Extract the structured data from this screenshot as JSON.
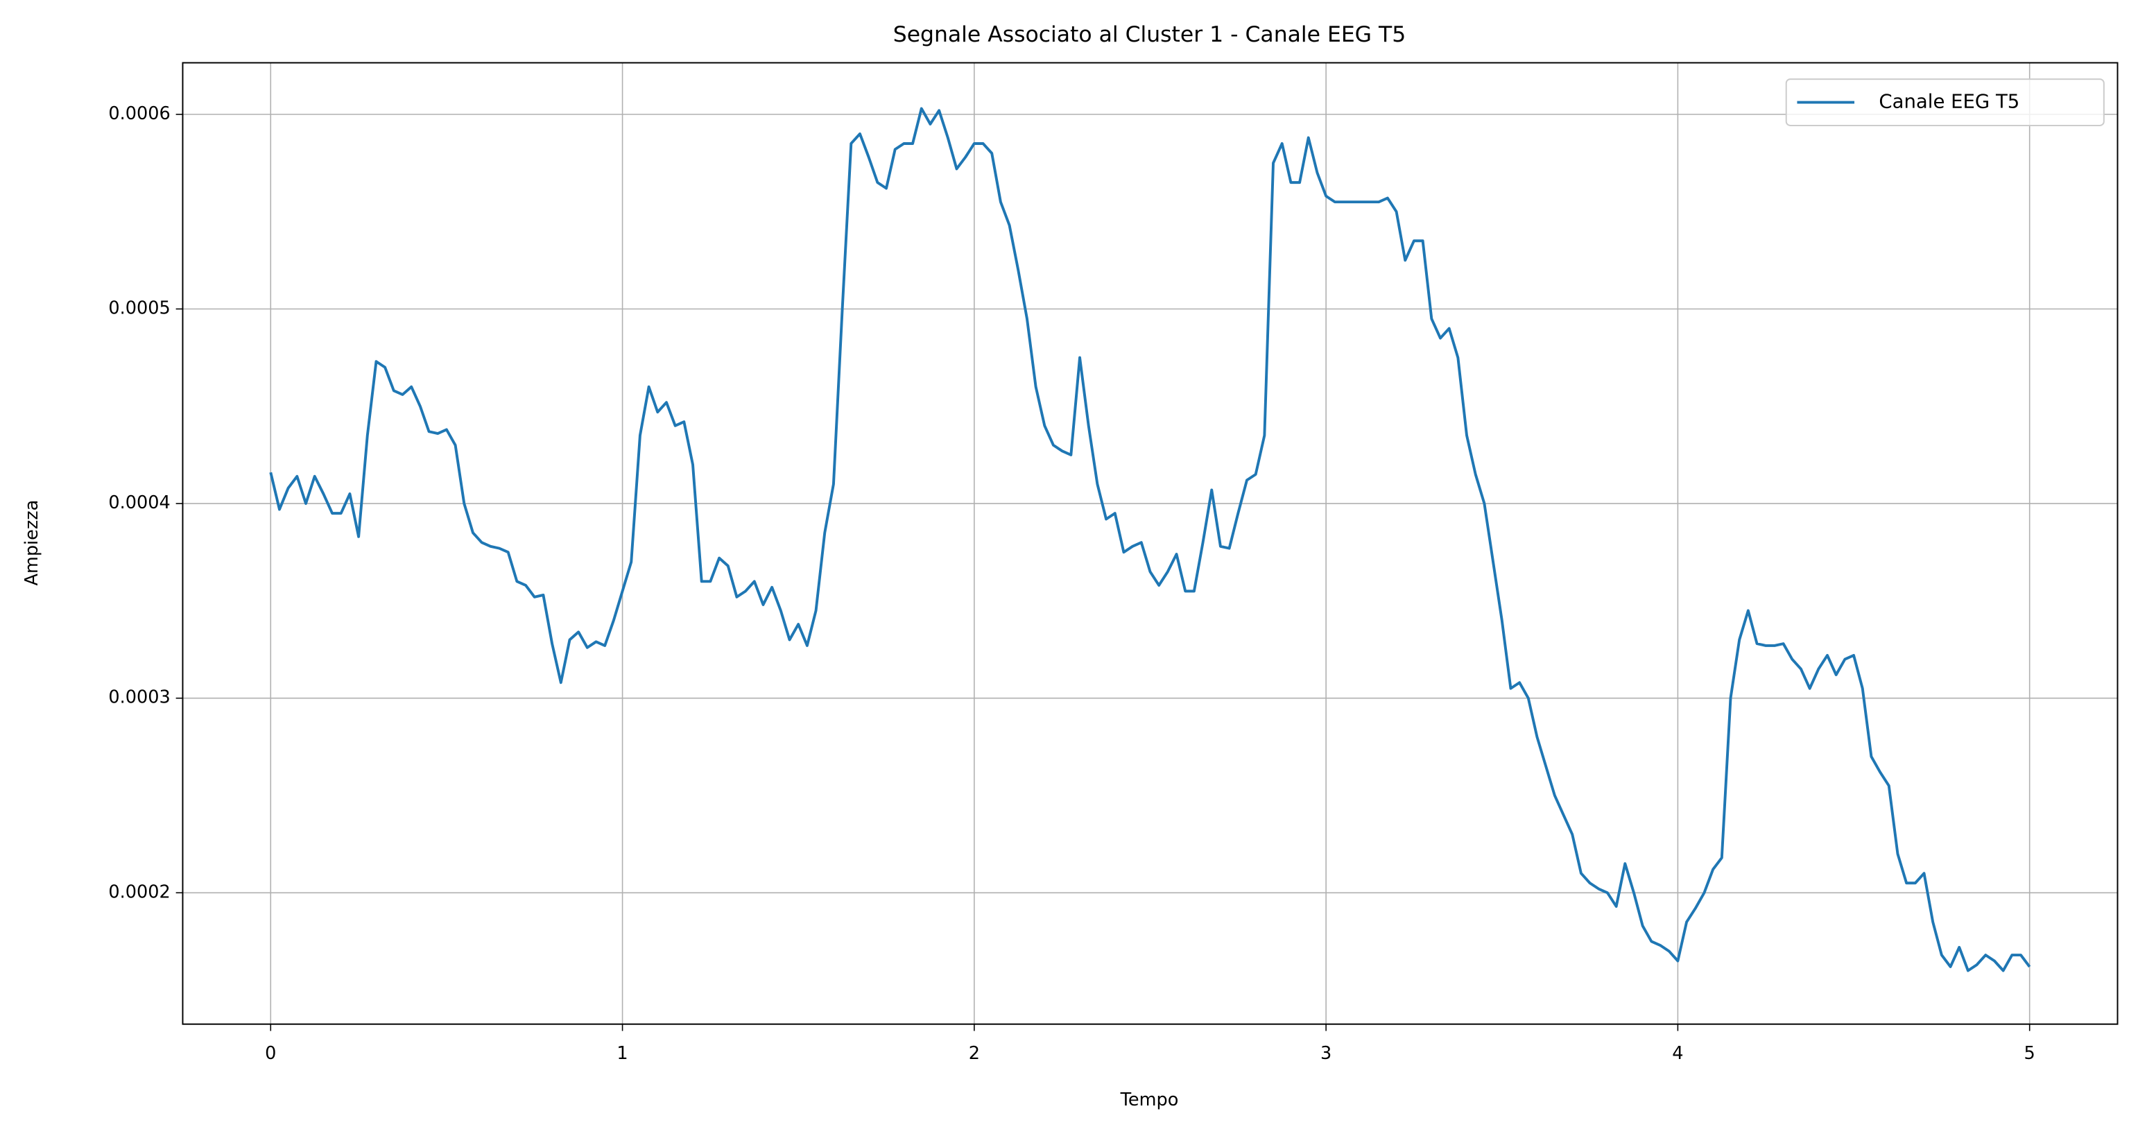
{
  "chart_data": {
    "type": "line",
    "title": "Segnale Associato al Cluster 1 - Canale EEG T5",
    "x_label": "Tempo",
    "y_label": "Ampiezza",
    "x": [
      0,
      0.025,
      0.05,
      0.075,
      0.1,
      0.125,
      0.15,
      0.175,
      0.2,
      0.225,
      0.25,
      0.275,
      0.3,
      0.325,
      0.35,
      0.375,
      0.4,
      0.425,
      0.45,
      0.475,
      0.5,
      0.525,
      0.55,
      0.575,
      0.6,
      0.625,
      0.65,
      0.675,
      0.7,
      0.725,
      0.75,
      0.775,
      0.8,
      0.825,
      0.85,
      0.875,
      0.9,
      0.925,
      0.95,
      0.975,
      1,
      1.025,
      1.05,
      1.075,
      1.1,
      1.125,
      1.15,
      1.175,
      1.2,
      1.225,
      1.25,
      1.275,
      1.3,
      1.325,
      1.35,
      1.375,
      1.4,
      1.425,
      1.45,
      1.475,
      1.5,
      1.525,
      1.55,
      1.575,
      1.6,
      1.625,
      1.65,
      1.675,
      1.7,
      1.725,
      1.75,
      1.775,
      1.8,
      1.825,
      1.85,
      1.875,
      1.9,
      1.925,
      1.95,
      1.975,
      2,
      2.025,
      2.05,
      2.075,
      2.1,
      2.125,
      2.15,
      2.175,
      2.2,
      2.225,
      2.25,
      2.275,
      2.3,
      2.325,
      2.35,
      2.375,
      2.4,
      2.425,
      2.45,
      2.475,
      2.5,
      2.525,
      2.55,
      2.575,
      2.6,
      2.625,
      2.65,
      2.675,
      2.7,
      2.725,
      2.75,
      2.775,
      2.8,
      2.825,
      2.85,
      2.875,
      2.9,
      2.925,
      2.95,
      2.975,
      3,
      3.025,
      3.05,
      3.075,
      3.1,
      3.125,
      3.15,
      3.175,
      3.2,
      3.225,
      3.25,
      3.275,
      3.3,
      3.325,
      3.35,
      3.375,
      3.4,
      3.425,
      3.45,
      3.475,
      3.5,
      3.525,
      3.55,
      3.575,
      3.6,
      3.625,
      3.65,
      3.675,
      3.7,
      3.725,
      3.75,
      3.775,
      3.8,
      3.825,
      3.85,
      3.875,
      3.9,
      3.925,
      3.95,
      3.975,
      4,
      4.025,
      4.05,
      4.075,
      4.1,
      4.125,
      4.15,
      4.175,
      4.2,
      4.225,
      4.25,
      4.275,
      4.3,
      4.325,
      4.35,
      4.375,
      4.4,
      4.425,
      4.45,
      4.475,
      4.5,
      4.525,
      4.55,
      4.575,
      4.6,
      4.625,
      4.65,
      4.675,
      4.7,
      4.725,
      4.75,
      4.775,
      4.8,
      4.825,
      4.85,
      4.875,
      4.9,
      4.925,
      4.95,
      4.975,
      5
    ],
    "series": [
      {
        "name": "Canale EEG T5",
        "color": "#1f77b4",
        "values": [
          0.000416,
          0.000397,
          0.000408,
          0.000414,
          0.0004,
          0.000414,
          0.000405,
          0.000395,
          0.000395,
          0.000405,
          0.000383,
          0.000435,
          0.000473,
          0.00047,
          0.000458,
          0.000456,
          0.00046,
          0.00045,
          0.000437,
          0.000436,
          0.000438,
          0.00043,
          0.0004,
          0.000385,
          0.00038,
          0.000378,
          0.000377,
          0.000375,
          0.00036,
          0.000358,
          0.000352,
          0.000353,
          0.000328,
          0.000308,
          0.00033,
          0.000334,
          0.000326,
          0.000329,
          0.000327,
          0.00034,
          0.000355,
          0.00037,
          0.000435,
          0.00046,
          0.000447,
          0.000452,
          0.00044,
          0.000442,
          0.00042,
          0.00036,
          0.00036,
          0.000372,
          0.000368,
          0.000352,
          0.000355,
          0.00036,
          0.000348,
          0.000357,
          0.000345,
          0.00033,
          0.000338,
          0.000327,
          0.000345,
          0.000385,
          0.00041,
          0.0005,
          0.000585,
          0.00059,
          0.000578,
          0.000565,
          0.000562,
          0.000582,
          0.000585,
          0.000585,
          0.000603,
          0.000595,
          0.000602,
          0.000588,
          0.000572,
          0.000578,
          0.000585,
          0.000585,
          0.00058,
          0.000555,
          0.000543,
          0.00052,
          0.000495,
          0.00046,
          0.00044,
          0.00043,
          0.000427,
          0.000425,
          0.000475,
          0.00044,
          0.00041,
          0.000392,
          0.000395,
          0.000375,
          0.000378,
          0.00038,
          0.000365,
          0.000358,
          0.000365,
          0.000374,
          0.000355,
          0.000355,
          0.00038,
          0.000407,
          0.000378,
          0.000377,
          0.000395,
          0.000412,
          0.000415,
          0.000435,
          0.000575,
          0.000585,
          0.000565,
          0.000565,
          0.000588,
          0.00057,
          0.000558,
          0.000555,
          0.000555,
          0.000555,
          0.000555,
          0.000555,
          0.000555,
          0.000557,
          0.00055,
          0.000525,
          0.000535,
          0.000535,
          0.000495,
          0.000485,
          0.00049,
          0.000475,
          0.000435,
          0.000415,
          0.0004,
          0.00037,
          0.00034,
          0.000305,
          0.000308,
          0.0003,
          0.00028,
          0.000265,
          0.00025,
          0.00024,
          0.00023,
          0.00021,
          0.000205,
          0.000202,
          0.0002,
          0.000193,
          0.000215,
          0.0002,
          0.000183,
          0.000175,
          0.000173,
          0.00017,
          0.000165,
          0.000185,
          0.000192,
          0.0002,
          0.000212,
          0.000218,
          0.0003,
          0.00033,
          0.000345,
          0.000328,
          0.000327,
          0.000327,
          0.000328,
          0.00032,
          0.000315,
          0.000305,
          0.000315,
          0.000322,
          0.000312,
          0.00032,
          0.000322,
          0.000305,
          0.00027,
          0.000262,
          0.000255,
          0.00022,
          0.000205,
          0.000205,
          0.00021,
          0.000185,
          0.000168,
          0.000162,
          0.000172,
          0.00016,
          0.000163,
          0.000168,
          0.000165,
          0.00016,
          0.000168,
          0.000168,
          0.000162
        ]
      }
    ],
    "xlim": [
      -0.25,
      5.25
    ],
    "ylim": [
      0.0001325,
      0.0006265
    ],
    "xticks": [
      0,
      1,
      2,
      3,
      4,
      5
    ],
    "yticks": [
      0.0002,
      0.0003,
      0.0004,
      0.0005,
      0.0006
    ],
    "grid": true,
    "legend": "upper right"
  }
}
